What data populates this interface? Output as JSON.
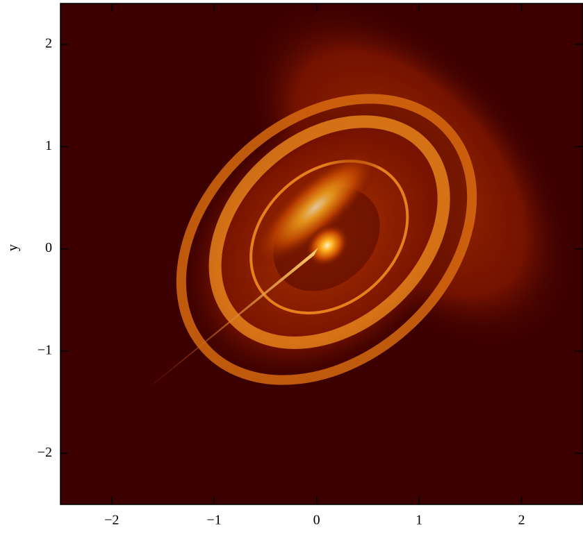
{
  "chart_data": {
    "type": "image",
    "ylabel": "y",
    "xlim": [
      -2.5,
      2.6
    ],
    "ylim": [
      -2.5,
      2.4
    ],
    "xticks": [
      {
        "value": -2,
        "label": "−2"
      },
      {
        "value": -1,
        "label": "−1"
      },
      0,
      1,
      2
    ],
    "yticks": [
      {
        "value": -2,
        "label": "−2"
      },
      {
        "value": -1,
        "label": "−1"
      },
      0,
      1,
      2
    ]
  }
}
